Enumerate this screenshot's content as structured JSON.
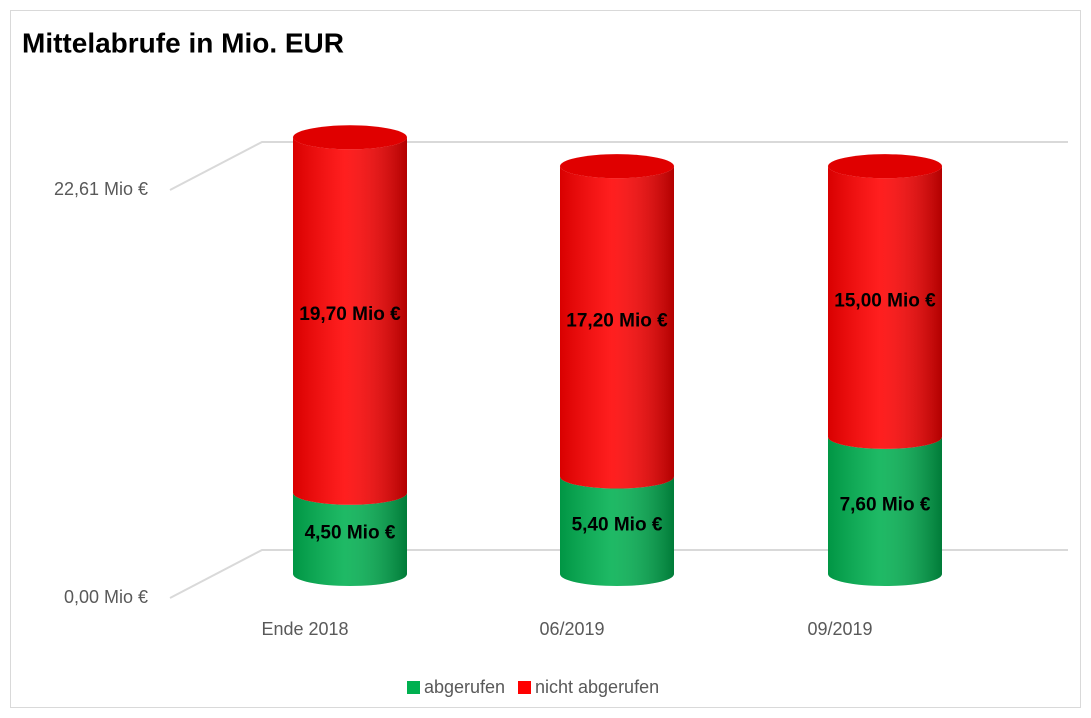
{
  "chart_data": {
    "type": "bar3d_stacked",
    "title": "Mittelabrufe in Mio. EUR",
    "categories": [
      "Ende 2018",
      "06/2019",
      "09/2019"
    ],
    "series": [
      {
        "name": "abgerufen",
        "color": "#00b050",
        "values": [
          4.5,
          5.4,
          7.6
        ],
        "value_labels": [
          "4,50 Mio €",
          "5,40 Mio €",
          "7,60 Mio €"
        ]
      },
      {
        "name": "nicht abgerufen",
        "color": "#ff0000",
        "values": [
          19.7,
          17.2,
          15.0
        ],
        "value_labels": [
          "19,70 Mio €",
          "17,20 Mio €",
          "15,00 Mio €"
        ]
      }
    ],
    "ylim": [
      0,
      22.61
    ],
    "yticks": [
      {
        "value": 0,
        "label": "0,00 Mio €"
      },
      {
        "value": 22.61,
        "label": "22,61 Mio €"
      }
    ],
    "grid": true,
    "legend": "bottom"
  }
}
